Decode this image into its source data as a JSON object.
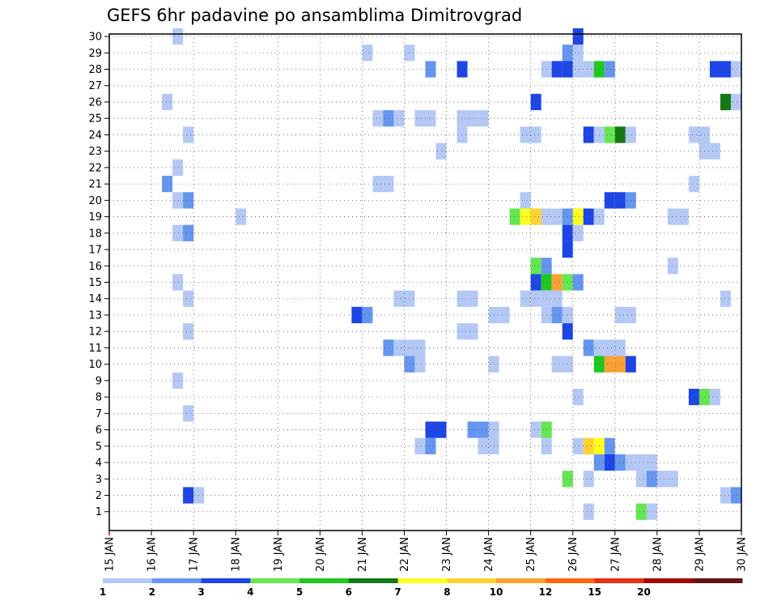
{
  "chart_data": {
    "type": "heatmap",
    "title": "GEFS 6hr padavine po ansamblima Dimitrovgrad",
    "xlabel": "",
    "ylabel": "",
    "x_tick_labels": [
      "15 JAN",
      "16 JAN",
      "17 JAN",
      "18 JAN",
      "19 JAN",
      "20 JAN",
      "21 JAN",
      "22 JAN",
      "23 JAN",
      "24 JAN",
      "25 JAN",
      "26 JAN",
      "27 JAN",
      "28 JAN",
      "29 JAN",
      "30 JAN"
    ],
    "y_tick_labels": [
      "1",
      "2",
      "3",
      "4",
      "5",
      "6",
      "7",
      "8",
      "9",
      "10",
      "11",
      "12",
      "13",
      "14",
      "15",
      "16",
      "17",
      "18",
      "19",
      "20",
      "21",
      "22",
      "23",
      "24",
      "25",
      "26",
      "27",
      "28",
      "29",
      "30"
    ],
    "x_range_days": [
      0,
      15
    ],
    "y_range": [
      0,
      30
    ],
    "grid": true,
    "legend": {
      "placement": "bottom",
      "labels": [
        "1",
        "2",
        "3",
        "4",
        "5",
        "6",
        "7",
        "8",
        "10",
        "12",
        "15",
        "20"
      ],
      "colors": [
        "#b4c8f5",
        "#6496f0",
        "#1e46e6",
        "#64e650",
        "#1ec81e",
        "#147814",
        "#ffff1e",
        "#ffd232",
        "#ffa032",
        "#ff6414",
        "#e63214",
        "#a00a0a",
        "#641414"
      ]
    },
    "cell_width_days": 0.25,
    "cells": [
      {
        "member": 30,
        "day": 1.5,
        "cls": 1
      },
      {
        "member": 30,
        "day": 11.0,
        "cls": 3
      },
      {
        "member": 29,
        "day": 6.0,
        "cls": 1
      },
      {
        "member": 29,
        "day": 7.0,
        "cls": 1
      },
      {
        "member": 29,
        "day": 10.75,
        "cls": 2
      },
      {
        "member": 29,
        "day": 11.0,
        "cls": 1
      },
      {
        "member": 28,
        "day": 7.5,
        "cls": 2
      },
      {
        "member": 28,
        "day": 8.25,
        "cls": 3
      },
      {
        "member": 28,
        "day": 10.25,
        "cls": 1
      },
      {
        "member": 28,
        "day": 10.5,
        "cls": 3
      },
      {
        "member": 28,
        "day": 10.75,
        "cls": 3
      },
      {
        "member": 28,
        "day": 11.0,
        "cls": 1
      },
      {
        "member": 28,
        "day": 11.25,
        "cls": 1
      },
      {
        "member": 28,
        "day": 11.5,
        "cls": 5
      },
      {
        "member": 28,
        "day": 11.75,
        "cls": 2
      },
      {
        "member": 28,
        "day": 14.25,
        "cls": 3
      },
      {
        "member": 28,
        "day": 14.5,
        "cls": 3
      },
      {
        "member": 28,
        "day": 14.75,
        "cls": 1
      },
      {
        "member": 26,
        "day": 1.25,
        "cls": 1
      },
      {
        "member": 26,
        "day": 10.0,
        "cls": 3
      },
      {
        "member": 26,
        "day": 14.5,
        "cls": 6
      },
      {
        "member": 26,
        "day": 14.75,
        "cls": 1
      },
      {
        "member": 25,
        "day": 6.25,
        "cls": 1
      },
      {
        "member": 25,
        "day": 6.5,
        "cls": 2
      },
      {
        "member": 25,
        "day": 6.75,
        "cls": 1
      },
      {
        "member": 25,
        "day": 7.25,
        "cls": 1
      },
      {
        "member": 25,
        "day": 7.5,
        "cls": 1
      },
      {
        "member": 25,
        "day": 8.25,
        "cls": 1
      },
      {
        "member": 25,
        "day": 8.5,
        "cls": 1
      },
      {
        "member": 25,
        "day": 8.75,
        "cls": 1
      },
      {
        "member": 24,
        "day": 1.75,
        "cls": 1
      },
      {
        "member": 24,
        "day": 8.25,
        "cls": 1
      },
      {
        "member": 24,
        "day": 9.75,
        "cls": 1
      },
      {
        "member": 24,
        "day": 10.0,
        "cls": 1
      },
      {
        "member": 24,
        "day": 11.25,
        "cls": 3
      },
      {
        "member": 24,
        "day": 11.5,
        "cls": 1
      },
      {
        "member": 24,
        "day": 11.75,
        "cls": 4
      },
      {
        "member": 24,
        "day": 12.0,
        "cls": 6
      },
      {
        "member": 24,
        "day": 12.25,
        "cls": 1
      },
      {
        "member": 24,
        "day": 13.75,
        "cls": 1
      },
      {
        "member": 24,
        "day": 14.0,
        "cls": 1
      },
      {
        "member": 23,
        "day": 7.75,
        "cls": 1
      },
      {
        "member": 23,
        "day": 14.0,
        "cls": 1
      },
      {
        "member": 23,
        "day": 14.25,
        "cls": 1
      },
      {
        "member": 22,
        "day": 1.5,
        "cls": 1
      },
      {
        "member": 21,
        "day": 1.25,
        "cls": 2
      },
      {
        "member": 21,
        "day": 6.25,
        "cls": 1
      },
      {
        "member": 21,
        "day": 6.5,
        "cls": 1
      },
      {
        "member": 21,
        "day": 13.75,
        "cls": 1
      },
      {
        "member": 20,
        "day": 1.5,
        "cls": 1
      },
      {
        "member": 20,
        "day": 1.75,
        "cls": 2
      },
      {
        "member": 20,
        "day": 9.75,
        "cls": 1
      },
      {
        "member": 20,
        "day": 11.75,
        "cls": 3
      },
      {
        "member": 20,
        "day": 12.0,
        "cls": 3
      },
      {
        "member": 20,
        "day": 12.25,
        "cls": 2
      },
      {
        "member": 19,
        "day": 3.0,
        "cls": 1
      },
      {
        "member": 19,
        "day": 9.5,
        "cls": 4
      },
      {
        "member": 19,
        "day": 9.75,
        "cls": 7
      },
      {
        "member": 19,
        "day": 10.0,
        "cls": 8
      },
      {
        "member": 19,
        "day": 10.25,
        "cls": 1
      },
      {
        "member": 19,
        "day": 10.5,
        "cls": 1
      },
      {
        "member": 19,
        "day": 10.75,
        "cls": 2
      },
      {
        "member": 19,
        "day": 11.0,
        "cls": 7
      },
      {
        "member": 19,
        "day": 11.25,
        "cls": 3
      },
      {
        "member": 19,
        "day": 11.5,
        "cls": 1
      },
      {
        "member": 19,
        "day": 13.25,
        "cls": 1
      },
      {
        "member": 19,
        "day": 13.5,
        "cls": 1
      },
      {
        "member": 18,
        "day": 1.5,
        "cls": 1
      },
      {
        "member": 18,
        "day": 1.75,
        "cls": 2
      },
      {
        "member": 18,
        "day": 10.75,
        "cls": 3
      },
      {
        "member": 18,
        "day": 11.0,
        "cls": 1
      },
      {
        "member": 17,
        "day": 10.75,
        "cls": 3
      },
      {
        "member": 16,
        "day": 10.0,
        "cls": 4
      },
      {
        "member": 16,
        "day": 10.25,
        "cls": 2
      },
      {
        "member": 16,
        "day": 13.25,
        "cls": 1
      },
      {
        "member": 15,
        "day": 1.5,
        "cls": 1
      },
      {
        "member": 15,
        "day": 10.0,
        "cls": 3
      },
      {
        "member": 15,
        "day": 10.25,
        "cls": 5
      },
      {
        "member": 15,
        "day": 10.5,
        "cls": 9
      },
      {
        "member": 15,
        "day": 10.75,
        "cls": 4
      },
      {
        "member": 15,
        "day": 11.0,
        "cls": 2
      },
      {
        "member": 14,
        "day": 1.75,
        "cls": 1
      },
      {
        "member": 14,
        "day": 6.75,
        "cls": 1
      },
      {
        "member": 14,
        "day": 7.0,
        "cls": 1
      },
      {
        "member": 14,
        "day": 8.25,
        "cls": 1
      },
      {
        "member": 14,
        "day": 8.5,
        "cls": 1
      },
      {
        "member": 14,
        "day": 9.75,
        "cls": 1
      },
      {
        "member": 14,
        "day": 10.0,
        "cls": 1
      },
      {
        "member": 14,
        "day": 10.25,
        "cls": 1
      },
      {
        "member": 14,
        "day": 10.5,
        "cls": 1
      },
      {
        "member": 14,
        "day": 14.5,
        "cls": 1
      },
      {
        "member": 13,
        "day": 5.75,
        "cls": 3
      },
      {
        "member": 13,
        "day": 6.0,
        "cls": 2
      },
      {
        "member": 13,
        "day": 9.0,
        "cls": 1
      },
      {
        "member": 13,
        "day": 9.25,
        "cls": 1
      },
      {
        "member": 13,
        "day": 10.25,
        "cls": 1
      },
      {
        "member": 13,
        "day": 10.5,
        "cls": 2
      },
      {
        "member": 13,
        "day": 10.75,
        "cls": 1
      },
      {
        "member": 13,
        "day": 12.0,
        "cls": 1
      },
      {
        "member": 13,
        "day": 12.25,
        "cls": 1
      },
      {
        "member": 12,
        "day": 1.75,
        "cls": 1
      },
      {
        "member": 12,
        "day": 8.25,
        "cls": 1
      },
      {
        "member": 12,
        "day": 8.5,
        "cls": 1
      },
      {
        "member": 12,
        "day": 10.75,
        "cls": 3
      },
      {
        "member": 11,
        "day": 6.5,
        "cls": 2
      },
      {
        "member": 11,
        "day": 6.75,
        "cls": 1
      },
      {
        "member": 11,
        "day": 7.0,
        "cls": 1
      },
      {
        "member": 11,
        "day": 7.25,
        "cls": 1
      },
      {
        "member": 11,
        "day": 11.25,
        "cls": 2
      },
      {
        "member": 11,
        "day": 11.5,
        "cls": 1
      },
      {
        "member": 11,
        "day": 11.75,
        "cls": 1
      },
      {
        "member": 11,
        "day": 12.0,
        "cls": 1
      },
      {
        "member": 10,
        "day": 7.0,
        "cls": 2
      },
      {
        "member": 10,
        "day": 7.25,
        "cls": 1
      },
      {
        "member": 10,
        "day": 9.0,
        "cls": 1
      },
      {
        "member": 10,
        "day": 10.5,
        "cls": 1
      },
      {
        "member": 10,
        "day": 10.75,
        "cls": 1
      },
      {
        "member": 10,
        "day": 11.5,
        "cls": 5
      },
      {
        "member": 10,
        "day": 11.75,
        "cls": 9
      },
      {
        "member": 10,
        "day": 12.0,
        "cls": 9
      },
      {
        "member": 10,
        "day": 12.25,
        "cls": 3
      },
      {
        "member": 9,
        "day": 1.5,
        "cls": 1
      },
      {
        "member": 8,
        "day": 11.0,
        "cls": 1
      },
      {
        "member": 8,
        "day": 13.75,
        "cls": 3
      },
      {
        "member": 8,
        "day": 14.0,
        "cls": 4
      },
      {
        "member": 8,
        "day": 14.25,
        "cls": 1
      },
      {
        "member": 7,
        "day": 1.75,
        "cls": 1
      },
      {
        "member": 6,
        "day": 7.5,
        "cls": 3
      },
      {
        "member": 6,
        "day": 7.75,
        "cls": 3
      },
      {
        "member": 6,
        "day": 8.5,
        "cls": 2
      },
      {
        "member": 6,
        "day": 8.75,
        "cls": 2
      },
      {
        "member": 6,
        "day": 9.0,
        "cls": 1
      },
      {
        "member": 6,
        "day": 10.0,
        "cls": 1
      },
      {
        "member": 6,
        "day": 10.25,
        "cls": 4
      },
      {
        "member": 5,
        "day": 7.25,
        "cls": 1
      },
      {
        "member": 5,
        "day": 7.5,
        "cls": 2
      },
      {
        "member": 5,
        "day": 8.75,
        "cls": 1
      },
      {
        "member": 5,
        "day": 9.0,
        "cls": 1
      },
      {
        "member": 5,
        "day": 10.25,
        "cls": 1
      },
      {
        "member": 5,
        "day": 11.0,
        "cls": 1
      },
      {
        "member": 5,
        "day": 11.25,
        "cls": 8
      },
      {
        "member": 5,
        "day": 11.5,
        "cls": 7
      },
      {
        "member": 5,
        "day": 11.75,
        "cls": 2
      },
      {
        "member": 4,
        "day": 11.5,
        "cls": 2
      },
      {
        "member": 4,
        "day": 11.75,
        "cls": 3
      },
      {
        "member": 4,
        "day": 12.0,
        "cls": 2
      },
      {
        "member": 4,
        "day": 12.25,
        "cls": 1
      },
      {
        "member": 4,
        "day": 12.5,
        "cls": 1
      },
      {
        "member": 4,
        "day": 12.75,
        "cls": 1
      },
      {
        "member": 3,
        "day": 10.75,
        "cls": 4
      },
      {
        "member": 3,
        "day": 11.25,
        "cls": 1
      },
      {
        "member": 3,
        "day": 12.5,
        "cls": 1
      },
      {
        "member": 3,
        "day": 12.75,
        "cls": 2
      },
      {
        "member": 3,
        "day": 13.0,
        "cls": 1
      },
      {
        "member": 3,
        "day": 13.25,
        "cls": 1
      },
      {
        "member": 2,
        "day": 1.75,
        "cls": 3
      },
      {
        "member": 2,
        "day": 2.0,
        "cls": 1
      },
      {
        "member": 2,
        "day": 14.5,
        "cls": 1
      },
      {
        "member": 2,
        "day": 14.75,
        "cls": 2
      },
      {
        "member": 1,
        "day": 11.25,
        "cls": 1
      },
      {
        "member": 1,
        "day": 12.5,
        "cls": 4
      },
      {
        "member": 1,
        "day": 12.75,
        "cls": 1
      }
    ]
  }
}
